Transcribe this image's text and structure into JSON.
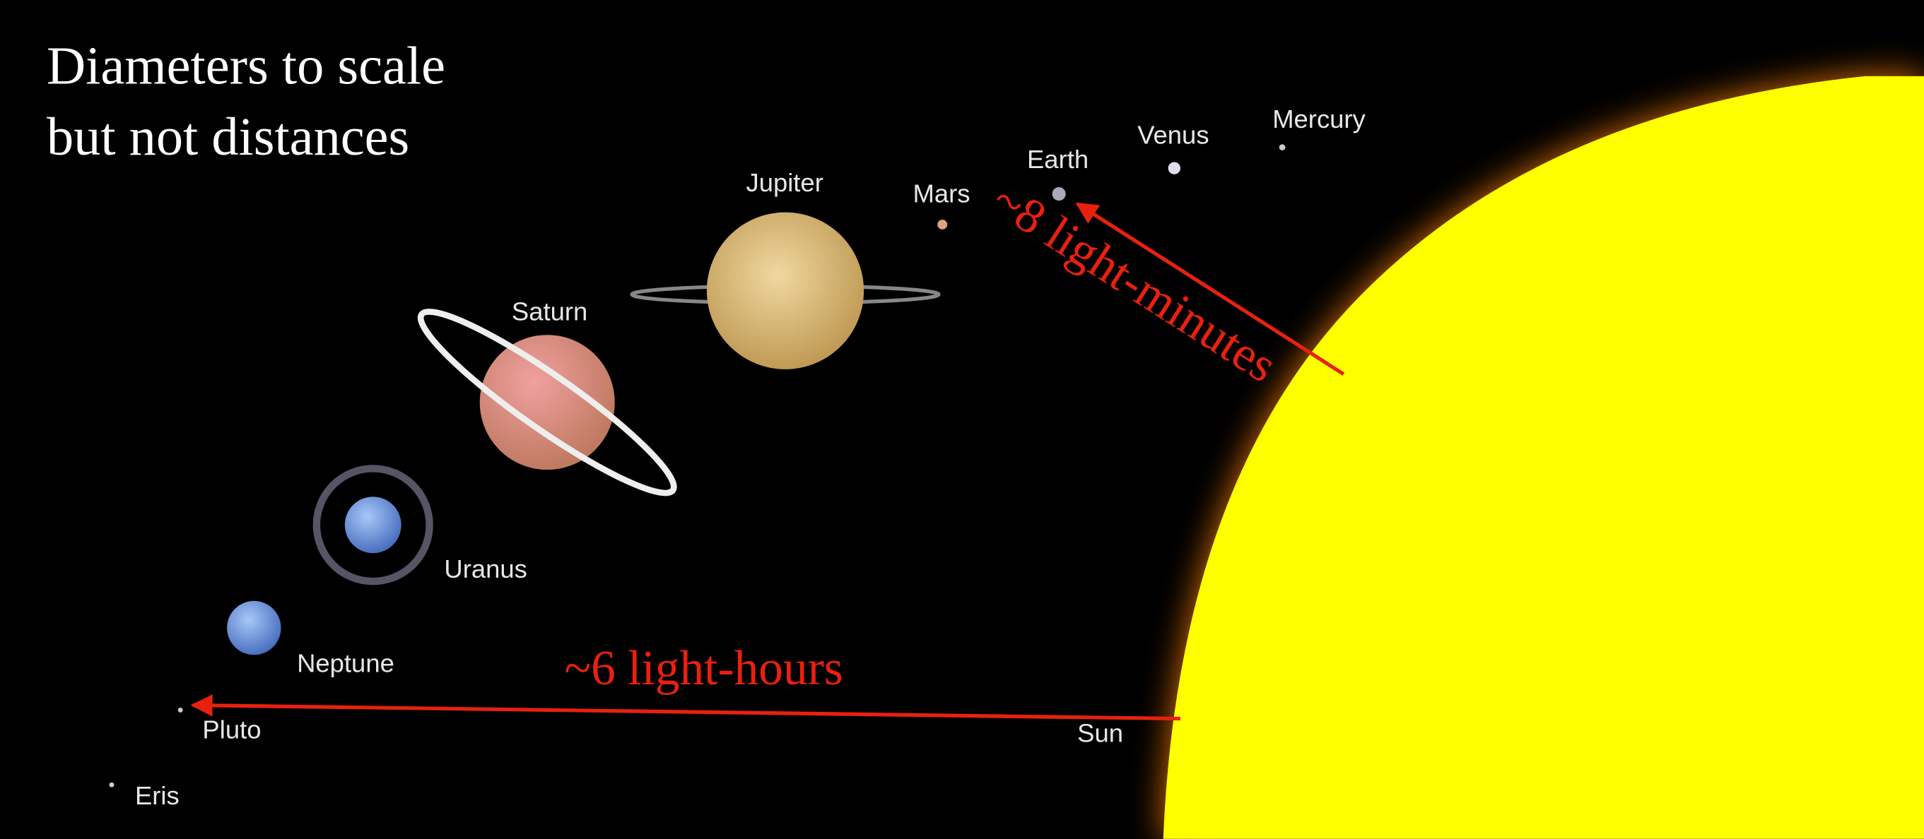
{
  "title": {
    "lines": [
      "Diameters to scale",
      "but not distances"
    ]
  },
  "bodies": [
    {
      "label": "Mercury"
    },
    {
      "label": "Venus"
    },
    {
      "label": "Earth"
    },
    {
      "label": "Mars"
    },
    {
      "label": "Jupiter"
    },
    {
      "label": "Saturn"
    },
    {
      "label": "Uranus"
    },
    {
      "label": "Neptune"
    },
    {
      "label": "Pluto"
    },
    {
      "label": "Eris"
    },
    {
      "label": "Sun"
    }
  ],
  "annotations": [
    "~8 light-minutes",
    "~6 light-hours"
  ]
}
